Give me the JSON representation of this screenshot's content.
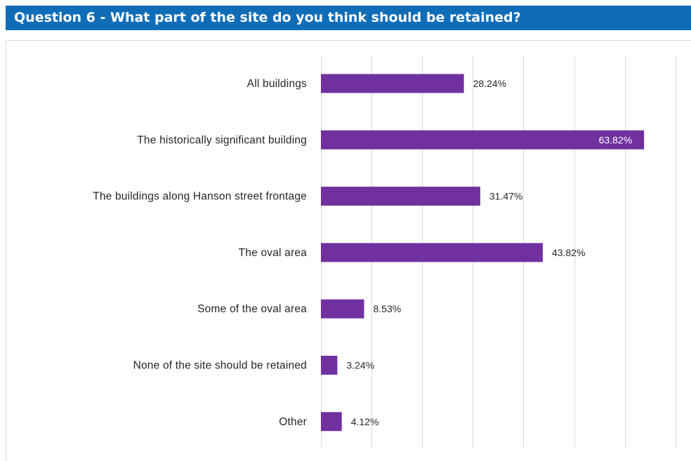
{
  "title": "Question 6 - What part of the site do you think should be retained?",
  "colors": {
    "title_bg": "#0f6db8",
    "bar": "#7030a0",
    "grid": "#d9d9d9"
  },
  "chart_data": {
    "type": "bar",
    "orientation": "horizontal",
    "categories": [
      "All buildings",
      "The historically significant building",
      "The buildings along Hanson street frontage",
      "The oval area",
      "Some of the oval area",
      "None of the site should be retained",
      "Other"
    ],
    "values": [
      28.24,
      63.82,
      31.47,
      43.82,
      8.53,
      3.24,
      4.12
    ],
    "labels": [
      "28.24%",
      "63.82%",
      "31.47%",
      "43.82%",
      "8.53%",
      "3.24%",
      "4.12%"
    ],
    "xlim": [
      0,
      70
    ],
    "grid": true,
    "unit": "%"
  }
}
